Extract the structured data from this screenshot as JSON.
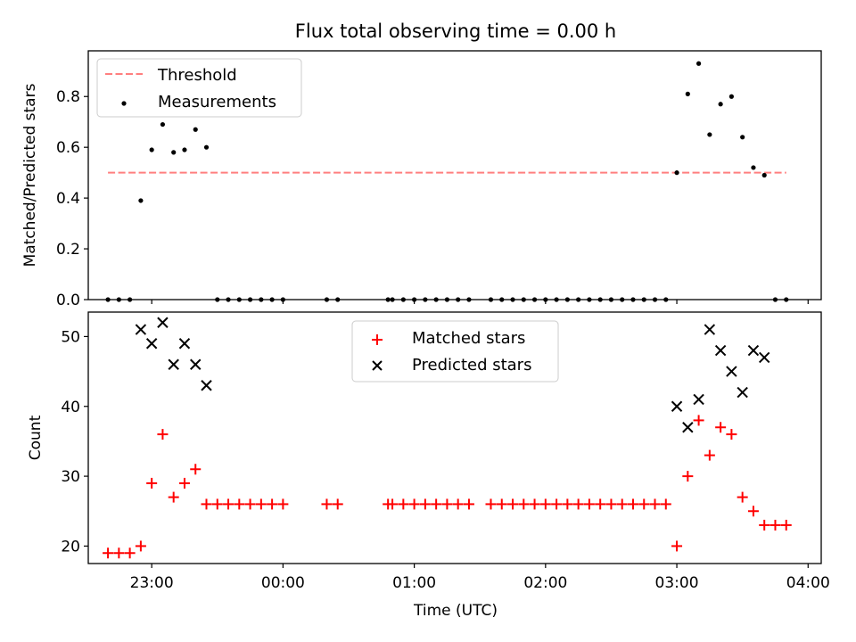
{
  "figure_title": "Flux total observing time = 0.00 h",
  "chart_data": [
    {
      "type": "scatter",
      "panel": "top",
      "title": "Flux total observing time = 0.00 h",
      "xlabel": "",
      "ylabel": "Matched/Predicted stars",
      "xlim": [
        "22:31",
        "04:06"
      ],
      "ylim": [
        0.0,
        0.98
      ],
      "yticks": [
        0.0,
        0.2,
        0.4,
        0.6,
        0.8
      ],
      "ytick_labels": [
        "0.0",
        "0.2",
        "0.4",
        "0.6",
        "0.8"
      ],
      "grid": false,
      "legend": "top-left",
      "series": [
        {
          "name": "Threshold",
          "kind": "line",
          "style": "dashed",
          "color": "#ff7f7f",
          "x": [
            "22:40",
            "03:50"
          ],
          "y": [
            0.5,
            0.5
          ]
        },
        {
          "name": "Measurements",
          "kind": "scatter",
          "marker": "dot",
          "color": "#000000",
          "points": [
            [
              "22:40",
              0.0
            ],
            [
              "22:45",
              0.0
            ],
            [
              "22:50",
              0.0
            ],
            [
              "22:55",
              0.39
            ],
            [
              "23:00",
              0.59
            ],
            [
              "23:05",
              0.69
            ],
            [
              "23:10",
              0.58
            ],
            [
              "23:15",
              0.59
            ],
            [
              "23:20",
              0.67
            ],
            [
              "23:25",
              0.6
            ],
            [
              "23:30",
              0.0
            ],
            [
              "23:35",
              0.0
            ],
            [
              "23:40",
              0.0
            ],
            [
              "23:45",
              0.0
            ],
            [
              "23:50",
              0.0
            ],
            [
              "23:55",
              0.0
            ],
            [
              "00:00",
              0.0
            ],
            [
              "00:20",
              0.0
            ],
            [
              "00:25",
              0.0
            ],
            [
              "00:48",
              0.0
            ],
            [
              "00:50",
              0.0
            ],
            [
              "00:55",
              0.0
            ],
            [
              "01:00",
              0.0
            ],
            [
              "01:05",
              0.0
            ],
            [
              "01:10",
              0.0
            ],
            [
              "01:15",
              0.0
            ],
            [
              "01:20",
              0.0
            ],
            [
              "01:25",
              0.0
            ],
            [
              "01:35",
              0.0
            ],
            [
              "01:40",
              0.0
            ],
            [
              "01:45",
              0.0
            ],
            [
              "01:50",
              0.0
            ],
            [
              "01:55",
              0.0
            ],
            [
              "02:00",
              0.0
            ],
            [
              "02:05",
              0.0
            ],
            [
              "02:10",
              0.0
            ],
            [
              "02:15",
              0.0
            ],
            [
              "02:20",
              0.0
            ],
            [
              "02:25",
              0.0
            ],
            [
              "02:30",
              0.0
            ],
            [
              "02:35",
              0.0
            ],
            [
              "02:40",
              0.0
            ],
            [
              "02:45",
              0.0
            ],
            [
              "02:50",
              0.0
            ],
            [
              "02:55",
              0.0
            ],
            [
              "03:00",
              0.5
            ],
            [
              "03:05",
              0.81
            ],
            [
              "03:10",
              0.93
            ],
            [
              "03:15",
              0.65
            ],
            [
              "03:20",
              0.77
            ],
            [
              "03:25",
              0.8
            ],
            [
              "03:30",
              0.64
            ],
            [
              "03:35",
              0.52
            ],
            [
              "03:40",
              0.49
            ],
            [
              "03:45",
              0.0
            ],
            [
              "03:50",
              0.0
            ]
          ]
        }
      ]
    },
    {
      "type": "scatter",
      "panel": "bottom",
      "title": "",
      "xlabel": "Time (UTC)",
      "ylabel": "Count",
      "xlim": [
        "22:31",
        "04:06"
      ],
      "ylim": [
        17.5,
        53.5
      ],
      "xticks": [
        "23:00",
        "00:00",
        "01:00",
        "02:00",
        "03:00",
        "04:00"
      ],
      "yticks": [
        20,
        30,
        40,
        50
      ],
      "ytick_labels": [
        "20",
        "30",
        "40",
        "50"
      ],
      "grid": false,
      "legend": "top-center",
      "series": [
        {
          "name": "Matched stars",
          "kind": "scatter",
          "marker": "plus",
          "color": "#ff0000",
          "points": [
            [
              "22:40",
              19
            ],
            [
              "22:45",
              19
            ],
            [
              "22:50",
              19
            ],
            [
              "22:55",
              20
            ],
            [
              "23:00",
              29
            ],
            [
              "23:05",
              36
            ],
            [
              "23:10",
              27
            ],
            [
              "23:15",
              29
            ],
            [
              "23:20",
              31
            ],
            [
              "23:25",
              26
            ],
            [
              "23:30",
              26
            ],
            [
              "23:35",
              26
            ],
            [
              "23:40",
              26
            ],
            [
              "23:45",
              26
            ],
            [
              "23:50",
              26
            ],
            [
              "23:55",
              26
            ],
            [
              "00:00",
              26
            ],
            [
              "00:20",
              26
            ],
            [
              "00:25",
              26
            ],
            [
              "00:48",
              26
            ],
            [
              "00:50",
              26
            ],
            [
              "00:55",
              26
            ],
            [
              "01:00",
              26
            ],
            [
              "01:05",
              26
            ],
            [
              "01:10",
              26
            ],
            [
              "01:15",
              26
            ],
            [
              "01:20",
              26
            ],
            [
              "01:25",
              26
            ],
            [
              "01:35",
              26
            ],
            [
              "01:40",
              26
            ],
            [
              "01:45",
              26
            ],
            [
              "01:50",
              26
            ],
            [
              "01:55",
              26
            ],
            [
              "02:00",
              26
            ],
            [
              "02:05",
              26
            ],
            [
              "02:10",
              26
            ],
            [
              "02:15",
              26
            ],
            [
              "02:20",
              26
            ],
            [
              "02:25",
              26
            ],
            [
              "02:30",
              26
            ],
            [
              "02:35",
              26
            ],
            [
              "02:40",
              26
            ],
            [
              "02:45",
              26
            ],
            [
              "02:50",
              26
            ],
            [
              "02:55",
              26
            ],
            [
              "03:00",
              20
            ],
            [
              "03:05",
              30
            ],
            [
              "03:10",
              38
            ],
            [
              "03:15",
              33
            ],
            [
              "03:20",
              37
            ],
            [
              "03:25",
              36
            ],
            [
              "03:30",
              27
            ],
            [
              "03:35",
              25
            ],
            [
              "03:40",
              23
            ],
            [
              "03:45",
              23
            ],
            [
              "03:50",
              23
            ]
          ]
        },
        {
          "name": "Predicted stars",
          "kind": "scatter",
          "marker": "x",
          "color": "#000000",
          "points": [
            [
              "22:55",
              51
            ],
            [
              "23:00",
              49
            ],
            [
              "23:05",
              52
            ],
            [
              "23:10",
              46
            ],
            [
              "23:15",
              49
            ],
            [
              "23:20",
              46
            ],
            [
              "23:25",
              43
            ],
            [
              "03:00",
              40
            ],
            [
              "03:05",
              37
            ],
            [
              "03:10",
              41
            ],
            [
              "03:15",
              51
            ],
            [
              "03:20",
              48
            ],
            [
              "03:25",
              45
            ],
            [
              "03:30",
              42
            ],
            [
              "03:35",
              48
            ],
            [
              "03:40",
              47
            ]
          ]
        }
      ]
    }
  ]
}
